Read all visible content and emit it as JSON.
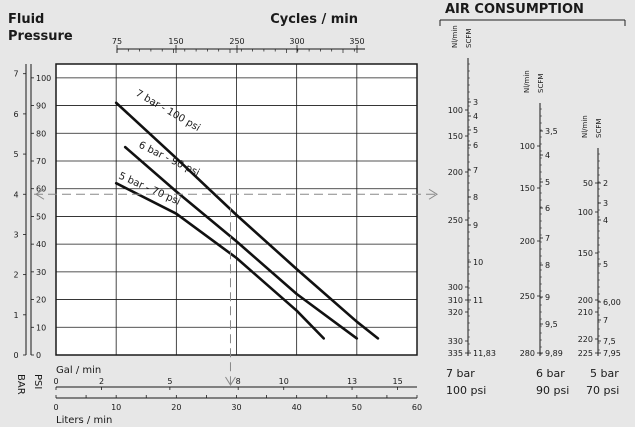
{
  "chart_data": {
    "type": "line",
    "title_left": [
      "Fluid",
      "Pressure"
    ],
    "title_top": "Cycles / min",
    "top_axis_ticks": [
      "75",
      "150",
      "250",
      "300",
      "350"
    ],
    "bar_ticks": [
      "7",
      "6",
      "5",
      "4",
      "3",
      "2",
      "1",
      "0"
    ],
    "psi_ticks": [
      "100",
      "90",
      "80",
      "70",
      "60",
      "50",
      "40",
      "30",
      "20",
      "10",
      "0"
    ],
    "bar_label": "BAR",
    "psi_label": "PSI",
    "gal_label": "Gal / min",
    "gal_ticks": [
      "0",
      "2",
      "5",
      "8",
      "10",
      "13",
      "15"
    ],
    "liters_label": "Liters / min",
    "liters_ticks": [
      "0",
      "10",
      "20",
      "30",
      "40",
      "50",
      "60"
    ],
    "xlim": [
      0,
      60
    ],
    "ylim_psi": [
      0,
      105
    ],
    "series": [
      {
        "name": "7 bar - 100 psi",
        "x": [
          10,
          20,
          30,
          40,
          50,
          53.5
        ],
        "y": [
          91,
          71,
          50.5,
          31,
          12,
          6
        ]
      },
      {
        "name": "6 bar - 90 psi",
        "x": [
          11.5,
          20,
          30,
          40,
          50
        ],
        "y": [
          75,
          59,
          41,
          22,
          6
        ]
      },
      {
        "name": "5 bar - 70 psi",
        "x": [
          10,
          20,
          30,
          40,
          44.5
        ],
        "y": [
          62,
          51,
          35,
          16,
          6
        ]
      }
    ],
    "reading_line": {
      "x": 29,
      "y": 58
    }
  },
  "air": {
    "title": "AIR CONSUMPTION",
    "unit_nl": "Nl/min",
    "unit_scfm": "SCFM",
    "columns": [
      {
        "bar_label": "7 bar",
        "psi_label": "100 psi",
        "nl_ticks": [
          "100",
          "150",
          "200",
          "250",
          "300",
          "310",
          "320",
          "330",
          "335"
        ],
        "scfm_ticks": [
          "3",
          "4",
          "5",
          "6",
          "7",
          "8",
          "9",
          "10",
          "11",
          "11,83"
        ]
      },
      {
        "bar_label": "6 bar",
        "psi_label": "90 psi",
        "nl_ticks": [
          "100",
          "150",
          "200",
          "250",
          "280"
        ],
        "scfm_ticks": [
          "3,5",
          "4",
          "5",
          "6",
          "7",
          "8",
          "9",
          "9,5",
          "9,89"
        ]
      },
      {
        "bar_label": "5 bar",
        "psi_label": "70 psi",
        "nl_ticks": [
          "50",
          "100",
          "150",
          "200",
          "210",
          "220",
          "225"
        ],
        "scfm_ticks": [
          "2",
          "3",
          "4",
          "5",
          "6,00",
          "7",
          "7,5",
          "7,95"
        ]
      }
    ]
  }
}
